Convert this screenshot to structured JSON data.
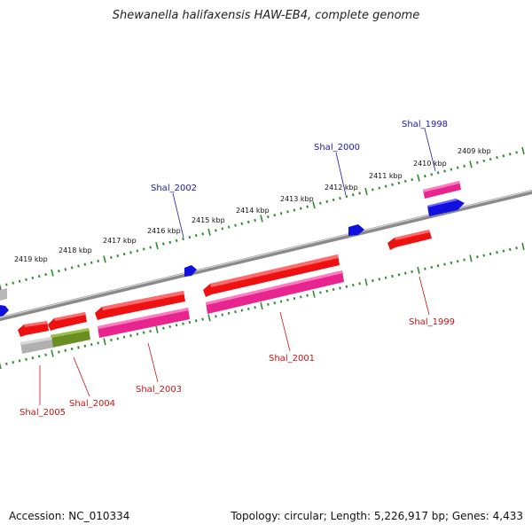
{
  "title": "Shewanella halifaxensis HAW-EB4, complete genome",
  "footer": {
    "accession": "Accession: NC_010334",
    "summary": "Topology: circular; Length: 5,226,917 bp; Genes: 4,433"
  },
  "kbp_labels": [
    "2419 kbp",
    "2418 kbp",
    "2417 kbp",
    "2416 kbp",
    "2415 kbp",
    "2414 kbp",
    "2413 kbp",
    "2412 kbp",
    "2411 kbp",
    "2410 kbp",
    "2409 kbp"
  ],
  "genes_forward": [
    {
      "name": "Shal_2002"
    },
    {
      "name": "Shal_2000"
    },
    {
      "name": "Shal_1998"
    }
  ],
  "genes_reverse": [
    {
      "name": "Shal_2005"
    },
    {
      "name": "Shal_2004"
    },
    {
      "name": "Shal_2003"
    },
    {
      "name": "Shal_2001"
    },
    {
      "name": "Shal_1999"
    }
  ],
  "colors": {
    "forward_label": "#1a1aa8",
    "reverse_label": "#cc1111",
    "cds_red": "#ee1111",
    "cds_pink": "#e8258f",
    "cds_blue": "#1010e0",
    "cds_green": "#6b8e23",
    "cds_gray": "#b0b0b0",
    "backbone": "#888888",
    "ticks": "#2e8b2e"
  }
}
